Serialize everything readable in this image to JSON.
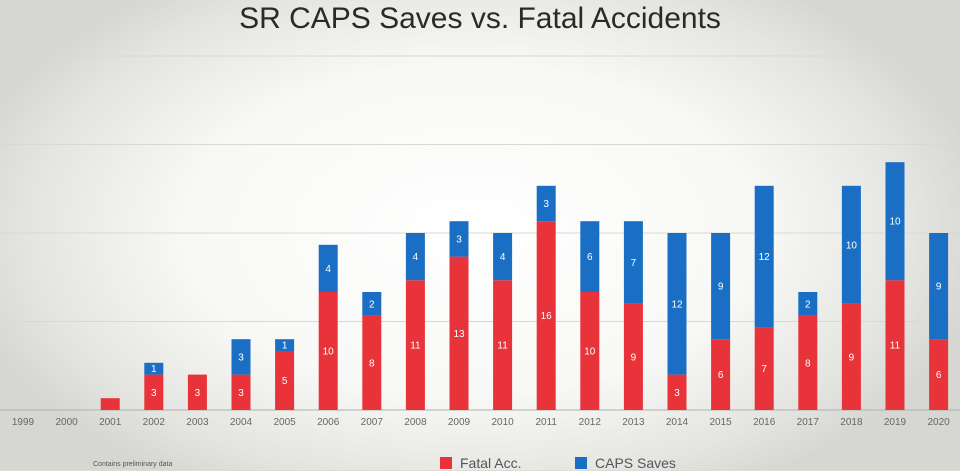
{
  "chart_data": {
    "type": "bar",
    "stacked": true,
    "title": "SR CAPS Saves vs. Fatal Accidents",
    "categories": [
      "1999",
      "2000",
      "2001",
      "2002",
      "2003",
      "2004",
      "2005",
      "2006",
      "2007",
      "2008",
      "2009",
      "2010",
      "2011",
      "2012",
      "2013",
      "2014",
      "2015",
      "2016",
      "2017",
      "2018",
      "2019",
      "2020"
    ],
    "series": [
      {
        "name": "Fatal Acc.",
        "color": "#e8333a",
        "values": [
          0,
          0,
          1,
          3,
          3,
          3,
          5,
          10,
          8,
          11,
          13,
          11,
          16,
          10,
          9,
          3,
          6,
          7,
          8,
          9,
          11,
          6
        ],
        "labels": [
          "",
          "",
          "",
          "3",
          "3",
          "3",
          "5",
          "10",
          "8",
          "11",
          "13",
          "11",
          "16",
          "10",
          "9",
          "3",
          "6",
          "7",
          "8",
          "9",
          "11",
          "6"
        ]
      },
      {
        "name": "CAPS Saves",
        "color": "#1a6fc4",
        "values": [
          0,
          0,
          0,
          1,
          0,
          3,
          1,
          4,
          2,
          4,
          3,
          4,
          3,
          6,
          7,
          12,
          9,
          12,
          2,
          10,
          10,
          9
        ],
        "labels": [
          "",
          "",
          "",
          "1",
          "",
          "3",
          "1",
          "4",
          "2",
          "4",
          "3",
          "4",
          "3",
          "6",
          "7",
          "12",
          "9",
          "12",
          "2",
          "10",
          "10",
          "9"
        ]
      }
    ],
    "ylim": [
      0,
      20
    ],
    "grid": true,
    "legend_position": "bottom"
  },
  "footnote": "Contains preliminary data"
}
